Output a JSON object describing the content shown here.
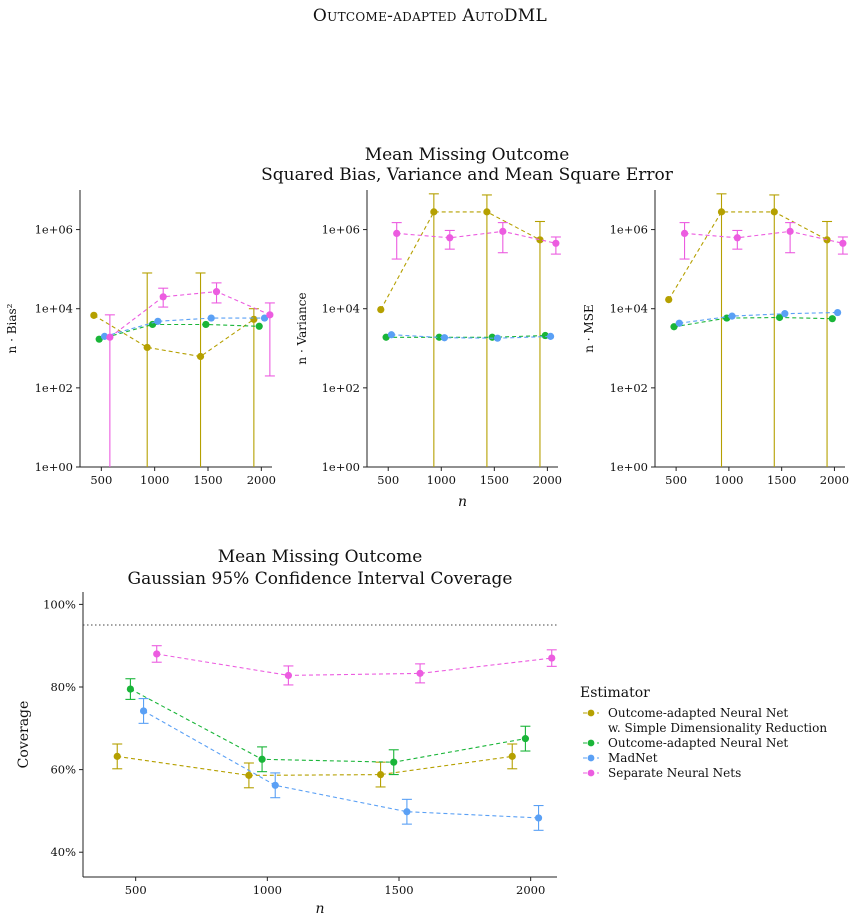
{
  "page_title": "Outcome-adapted AutoDML",
  "top_title": [
    "Mean Missing Outcome",
    "Squared Bias, Variance and Mean Square Error"
  ],
  "bottom_title": [
    "Mean Missing Outcome",
    "Gaussian 95% Confidence Interval Coverage"
  ],
  "colors": {
    "olive": "#b5a000",
    "green": "#19b538",
    "blue": "#5aa0f5",
    "pink": "#ec5ce0"
  },
  "legend": {
    "title": "Estimator",
    "items": [
      {
        "label": [
          "Outcome-adapted Neural Net",
          "w. Simple Dimensionality Reduction"
        ],
        "color_key": "olive"
      },
      {
        "label": [
          "Outcome-adapted Neural Net"
        ],
        "color_key": "green"
      },
      {
        "label": [
          "MadNet"
        ],
        "color_key": "blue"
      },
      {
        "label": [
          "Separate Neural Nets"
        ],
        "color_key": "pink"
      }
    ]
  },
  "chart_data": [
    {
      "type": "line",
      "id": "bias",
      "xlabel": "",
      "ylabel": "n · Bias²",
      "xlim": [
        300,
        2100
      ],
      "xticks": [
        500,
        1000,
        1500,
        2000
      ],
      "ylog": true,
      "ylim": [
        1,
        10000000
      ],
      "yticks": [
        1,
        100,
        10000,
        1000000
      ],
      "yticklabels": [
        "1e+00",
        "1e+02",
        "1e+04",
        "1e+06"
      ],
      "series": [
        {
          "color_key": "olive",
          "x": [
            430,
            930,
            1430,
            1930
          ],
          "y": [
            6800,
            1050,
            620,
            5400
          ],
          "lo": [
            null,
            1,
            1,
            1
          ],
          "hi": [
            null,
            80000,
            80000,
            10000
          ]
        },
        {
          "color_key": "green",
          "x": [
            480,
            980,
            1480,
            1980
          ],
          "y": [
            1700,
            4000,
            4000,
            3600
          ],
          "lo": [
            null,
            null,
            null,
            null
          ],
          "hi": [
            null,
            null,
            null,
            null
          ]
        },
        {
          "color_key": "blue",
          "x": [
            530,
            1030,
            1530,
            2030
          ],
          "y": [
            2000,
            4800,
            5800,
            5800
          ],
          "lo": [
            null,
            null,
            null,
            null
          ],
          "hi": [
            null,
            null,
            null,
            null
          ]
        },
        {
          "color_key": "pink",
          "x": [
            580,
            1080,
            1580,
            2080
          ],
          "y": [
            1900,
            20000,
            27000,
            7000
          ],
          "lo": [
            1,
            11000,
            14000,
            200
          ],
          "hi": [
            7000,
            33000,
            45000,
            14000
          ]
        }
      ]
    },
    {
      "type": "line",
      "id": "variance",
      "xlabel": "n",
      "ylabel": "n · Variance",
      "xlim": [
        300,
        2100
      ],
      "xticks": [
        500,
        1000,
        1500,
        2000
      ],
      "ylog": true,
      "ylim": [
        1,
        10000000
      ],
      "yticks": [
        1,
        100,
        10000,
        1000000
      ],
      "yticklabels": [
        "1e+00",
        "1e+02",
        "1e+04",
        "1e+06"
      ],
      "series": [
        {
          "color_key": "olive",
          "x": [
            430,
            930,
            1430,
            1930
          ],
          "y": [
            9500,
            2800000,
            2800000,
            550000
          ],
          "lo": [
            null,
            1,
            1,
            1
          ],
          "hi": [
            null,
            8000000,
            7500000,
            1600000
          ]
        },
        {
          "color_key": "green",
          "x": [
            480,
            980,
            1480,
            1980
          ],
          "y": [
            1900,
            1900,
            1900,
            2100
          ],
          "lo": [
            null,
            null,
            null,
            null
          ],
          "hi": [
            null,
            null,
            null,
            null
          ]
        },
        {
          "color_key": "blue",
          "x": [
            530,
            1030,
            1530,
            2030
          ],
          "y": [
            2200,
            1850,
            1800,
            2000
          ],
          "lo": [
            null,
            null,
            null,
            null
          ],
          "hi": [
            null,
            null,
            null,
            null
          ]
        },
        {
          "color_key": "pink",
          "x": [
            580,
            1080,
            1580,
            2080
          ],
          "y": [
            800000,
            620000,
            900000,
            450000
          ],
          "lo": [
            180000,
            320000,
            260000,
            240000
          ],
          "hi": [
            1500000,
            950000,
            1500000,
            650000
          ]
        }
      ]
    },
    {
      "type": "line",
      "id": "mse",
      "xlabel": "",
      "ylabel": "n · MSE",
      "xlim": [
        300,
        2100
      ],
      "xticks": [
        500,
        1000,
        1500,
        2000
      ],
      "ylog": true,
      "ylim": [
        1,
        10000000
      ],
      "yticks": [
        1,
        100,
        10000,
        1000000
      ],
      "yticklabels": [
        "1e+00",
        "1e+02",
        "1e+04",
        "1e+06"
      ],
      "series": [
        {
          "color_key": "olive",
          "x": [
            430,
            930,
            1430,
            1930
          ],
          "y": [
            17000,
            2800000,
            2800000,
            550000
          ],
          "lo": [
            null,
            1,
            1,
            1
          ],
          "hi": [
            null,
            8000000,
            7500000,
            1600000
          ]
        },
        {
          "color_key": "green",
          "x": [
            480,
            980,
            1480,
            1980
          ],
          "y": [
            3500,
            5800,
            6000,
            5600
          ],
          "lo": [
            null,
            null,
            null,
            null
          ],
          "hi": [
            null,
            null,
            null,
            null
          ]
        },
        {
          "color_key": "blue",
          "x": [
            530,
            1030,
            1530,
            2030
          ],
          "y": [
            4300,
            6500,
            7500,
            8000
          ],
          "lo": [
            null,
            null,
            null,
            null
          ],
          "hi": [
            null,
            null,
            null,
            null
          ]
        },
        {
          "color_key": "pink",
          "x": [
            580,
            1080,
            1580,
            2080
          ],
          "y": [
            800000,
            620000,
            900000,
            450000
          ],
          "lo": [
            180000,
            320000,
            260000,
            240000
          ],
          "hi": [
            1500000,
            950000,
            1500000,
            650000
          ]
        }
      ]
    },
    {
      "type": "line",
      "id": "coverage",
      "xlabel": "n",
      "ylabel": "Coverage",
      "xlim": [
        300,
        2100
      ],
      "xticks": [
        500,
        1000,
        1500,
        2000
      ],
      "ylog": false,
      "ylim": [
        34,
        103
      ],
      "yticks": [
        40,
        60,
        80,
        100
      ],
      "yticklabels": [
        "40%",
        "60%",
        "80%",
        "100%"
      ],
      "reference_line": 95,
      "series": [
        {
          "color_key": "olive",
          "x": [
            430,
            930,
            1430,
            1930
          ],
          "y": [
            63.2,
            58.6,
            58.8,
            63.2
          ],
          "lo": [
            60.2,
            55.6,
            55.8,
            60.2
          ],
          "hi": [
            66.2,
            61.6,
            61.8,
            66.2
          ]
        },
        {
          "color_key": "green",
          "x": [
            480,
            980,
            1480,
            1980
          ],
          "y": [
            79.5,
            62.5,
            61.8,
            67.5
          ],
          "lo": [
            77.0,
            59.5,
            58.8,
            64.5
          ],
          "hi": [
            82.0,
            65.5,
            64.8,
            70.5
          ]
        },
        {
          "color_key": "blue",
          "x": [
            530,
            1030,
            1530,
            2030
          ],
          "y": [
            74.2,
            56.2,
            49.8,
            48.3
          ],
          "lo": [
            71.2,
            53.2,
            46.8,
            45.3
          ],
          "hi": [
            77.2,
            59.2,
            52.8,
            51.3
          ]
        },
        {
          "color_key": "pink",
          "x": [
            580,
            1080,
            1580,
            2080
          ],
          "y": [
            88.0,
            82.8,
            83.3,
            87.0
          ],
          "lo": [
            86.0,
            80.5,
            81.0,
            85.0
          ],
          "hi": [
            90.0,
            85.1,
            85.6,
            89.0
          ]
        }
      ]
    }
  ]
}
